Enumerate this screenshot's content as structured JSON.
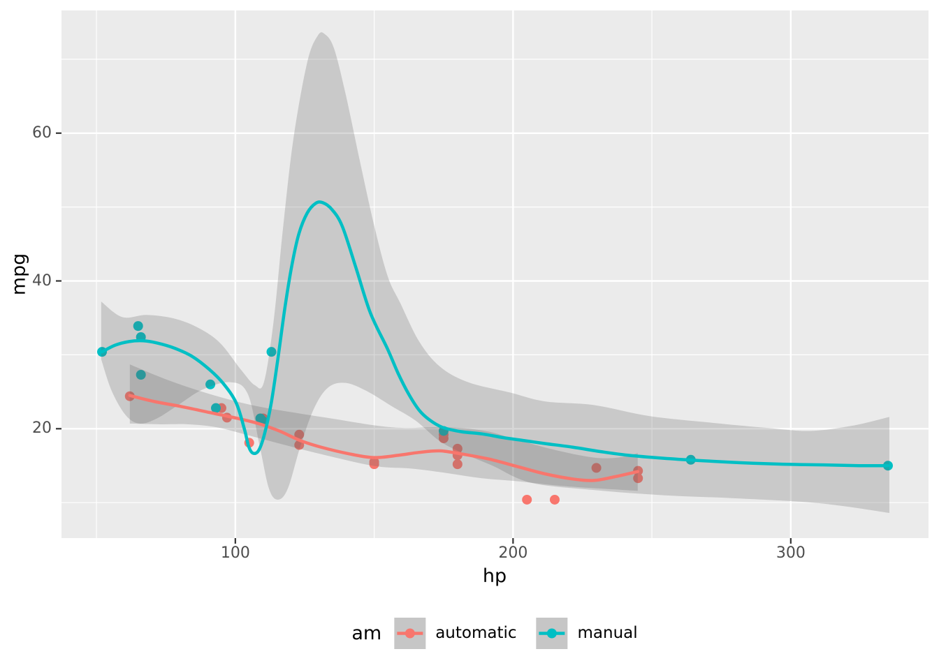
{
  "figure": {
    "background": "#ffffff",
    "panel_background": "#ebebeb",
    "grid_color": "#ffffff",
    "tick_color": "#333333",
    "tick_text_color": "#4d4d4d",
    "ribbon_color": "#646464",
    "ribbon_opacity": 0.25
  },
  "chart_data": {
    "type": "scatter",
    "title": "",
    "xlabel": "hp",
    "ylabel": "mpg",
    "xlim": [
      37.4,
      349.6
    ],
    "ylim": [
      5.2,
      76.6
    ],
    "x_ticks": [
      100,
      200,
      300
    ],
    "y_ticks": [
      20,
      40,
      60
    ],
    "x_minor_ticks": [
      50,
      150,
      250,
      350
    ],
    "y_minor_ticks": [
      10,
      30,
      50,
      70
    ],
    "grid": true,
    "legend": {
      "title": "am",
      "position": "bottom",
      "entries": [
        {
          "label": "automatic",
          "color": "#F8766D"
        },
        {
          "label": "manual",
          "color": "#00BFC4"
        }
      ]
    },
    "series": [
      {
        "name": "automatic",
        "color": "#F8766D",
        "points": [
          [
            110,
            21.4
          ],
          [
            175,
            18.7
          ],
          [
            105,
            18.1
          ],
          [
            245,
            14.3
          ],
          [
            62,
            24.4
          ],
          [
            95,
            22.8
          ],
          [
            123,
            19.2
          ],
          [
            123,
            17.8
          ],
          [
            180,
            16.4
          ],
          [
            180,
            17.3
          ],
          [
            180,
            15.2
          ],
          [
            205,
            10.4
          ],
          [
            215,
            10.4
          ],
          [
            230,
            14.7
          ],
          [
            97,
            21.5
          ],
          [
            150,
            15.5
          ],
          [
            150,
            15.2
          ],
          [
            245,
            13.3
          ],
          [
            175,
            19.2
          ]
        ],
        "smooth_line": [
          [
            62,
            24.5
          ],
          [
            70.6,
            23.7
          ],
          [
            80.6,
            23.0
          ],
          [
            90.7,
            22.2
          ],
          [
            100.8,
            21.4
          ],
          [
            108.3,
            20.7
          ],
          [
            115.8,
            19.7
          ],
          [
            123.4,
            18.4
          ],
          [
            130.9,
            17.5
          ],
          [
            141,
            16.6
          ],
          [
            149.8,
            16.1
          ],
          [
            158.6,
            16.4
          ],
          [
            166.2,
            16.8
          ],
          [
            173.7,
            17.0
          ],
          [
            181.3,
            16.6
          ],
          [
            191.3,
            15.9
          ],
          [
            201.4,
            14.9
          ],
          [
            211.4,
            13.9
          ],
          [
            221.5,
            13.2
          ],
          [
            229.1,
            13.0
          ],
          [
            236.6,
            13.5
          ],
          [
            244.9,
            14.2
          ]
        ],
        "ribbon_upper": [
          [
            62,
            28.7
          ],
          [
            75.6,
            26.6
          ],
          [
            90.7,
            24.7
          ],
          [
            105.8,
            23.2
          ],
          [
            120.9,
            22.2
          ],
          [
            136,
            21.3
          ],
          [
            151.1,
            20.4
          ],
          [
            161.1,
            20.1
          ],
          [
            171.2,
            20.2
          ],
          [
            181.3,
            20.1
          ],
          [
            191.3,
            19.6
          ],
          [
            201.4,
            18.5
          ],
          [
            216.5,
            17.0
          ],
          [
            229.1,
            16.1
          ],
          [
            237.9,
            16.1
          ],
          [
            244.9,
            16.7
          ]
        ],
        "ribbon_lower": [
          [
            62,
            20.7
          ],
          [
            73.1,
            20.6
          ],
          [
            83.1,
            20.6
          ],
          [
            93.2,
            20.2
          ],
          [
            105.8,
            19.0
          ],
          [
            120.9,
            17.5
          ],
          [
            136,
            16.1
          ],
          [
            151.1,
            14.9
          ],
          [
            163.7,
            14.6
          ],
          [
            176.2,
            14.0
          ],
          [
            188.8,
            13.3
          ],
          [
            201.4,
            12.9
          ],
          [
            216.5,
            12.3
          ],
          [
            231.6,
            11.9
          ],
          [
            244.9,
            11.6
          ]
        ]
      },
      {
        "name": "manual",
        "color": "#00BFC4",
        "points": [
          [
            110,
            21
          ],
          [
            110,
            21
          ],
          [
            93,
            22.8
          ],
          [
            66,
            32.4
          ],
          [
            52,
            30.4
          ],
          [
            65,
            33.9
          ],
          [
            66,
            27.3
          ],
          [
            91,
            26
          ],
          [
            113,
            30.4
          ],
          [
            264,
            15.8
          ],
          [
            175,
            19.7
          ],
          [
            335,
            15
          ],
          [
            109,
            21.4
          ]
        ],
        "smooth_line": [
          [
            52,
            30.4
          ],
          [
            56.7,
            31.3
          ],
          [
            61.8,
            31.8
          ],
          [
            66.8,
            31.9
          ],
          [
            71.8,
            31.6
          ],
          [
            78.1,
            30.9
          ],
          [
            84.4,
            29.8
          ],
          [
            90.7,
            28.0
          ],
          [
            95.7,
            26.1
          ],
          [
            100.3,
            23.5
          ],
          [
            103.3,
            19.9
          ],
          [
            104.8,
            17.6
          ],
          [
            106.3,
            16.7
          ],
          [
            108.3,
            17.0
          ],
          [
            110.3,
            19.0
          ],
          [
            112.8,
            23.2
          ],
          [
            115.3,
            29.4
          ],
          [
            117.9,
            36.5
          ],
          [
            120.4,
            42.2
          ],
          [
            122.9,
            46.4
          ],
          [
            125.9,
            49.2
          ],
          [
            128.9,
            50.5
          ],
          [
            131.4,
            50.6
          ],
          [
            134.7,
            49.7
          ],
          [
            138.5,
            47.4
          ],
          [
            143.5,
            41.7
          ],
          [
            148.6,
            35.7
          ],
          [
            154.8,
            30.8
          ],
          [
            158.6,
            27.5
          ],
          [
            162.4,
            24.7
          ],
          [
            166.2,
            22.5
          ],
          [
            169.9,
            21.2
          ],
          [
            174.5,
            20.2
          ],
          [
            181.3,
            19.6
          ],
          [
            188.8,
            19.3
          ],
          [
            196.4,
            18.8
          ],
          [
            203.9,
            18.4
          ],
          [
            211.4,
            18.0
          ],
          [
            221.5,
            17.5
          ],
          [
            231.6,
            16.9
          ],
          [
            241.6,
            16.4
          ],
          [
            254.2,
            16.0
          ],
          [
            266.8,
            15.7
          ],
          [
            281.9,
            15.4
          ],
          [
            297,
            15.2
          ],
          [
            312,
            15.1
          ],
          [
            324.6,
            15.0
          ],
          [
            335,
            15.0
          ]
        ],
        "ribbon_upper": [
          [
            51.7,
            37.2
          ],
          [
            59.3,
            35.1
          ],
          [
            68.1,
            35.4
          ],
          [
            78.1,
            34.9
          ],
          [
            86.9,
            33.6
          ],
          [
            94.5,
            31.6
          ],
          [
            102,
            28.0
          ],
          [
            107,
            25.9
          ],
          [
            110.3,
            26.3
          ],
          [
            113.8,
            34.6
          ],
          [
            117.1,
            46.9
          ],
          [
            120.9,
            59.2
          ],
          [
            125.9,
            69.6
          ],
          [
            129.7,
            73.2
          ],
          [
            132.2,
            73.4
          ],
          [
            135.5,
            71.5
          ],
          [
            139.7,
            65.3
          ],
          [
            144.8,
            56.3
          ],
          [
            149.8,
            47.8
          ],
          [
            154.8,
            40.7
          ],
          [
            159.4,
            37.0
          ],
          [
            166.2,
            31.8
          ],
          [
            173.7,
            28.4
          ],
          [
            183.8,
            26.3
          ],
          [
            198.9,
            24.9
          ],
          [
            211.4,
            23.7
          ],
          [
            229.1,
            23.2
          ],
          [
            249.2,
            21.7
          ],
          [
            271.8,
            20.8
          ],
          [
            292,
            20.1
          ],
          [
            307,
            19.7
          ],
          [
            322.1,
            20.4
          ],
          [
            335.5,
            21.6
          ]
        ],
        "ribbon_lower": [
          [
            51.7,
            29.4
          ],
          [
            55.5,
            25.1
          ],
          [
            60.6,
            21.8
          ],
          [
            65.6,
            20.7
          ],
          [
            71.8,
            21.4
          ],
          [
            79.4,
            23.2
          ],
          [
            88.2,
            25.3
          ],
          [
            98.2,
            26.3
          ],
          [
            104.5,
            24.7
          ],
          [
            108.8,
            17.6
          ],
          [
            112.1,
            11.9
          ],
          [
            115.3,
            10.4
          ],
          [
            118.9,
            11.9
          ],
          [
            123.4,
            17.6
          ],
          [
            128.4,
            22.8
          ],
          [
            133.5,
            25.6
          ],
          [
            139.7,
            26.2
          ],
          [
            147.3,
            25.1
          ],
          [
            156.1,
            23.1
          ],
          [
            164.9,
            21.1
          ],
          [
            173.7,
            18.3
          ],
          [
            182.5,
            16.6
          ],
          [
            192.6,
            15.0
          ],
          [
            206.4,
            12.7
          ],
          [
            229.1,
            11.7
          ],
          [
            254.2,
            11.0
          ],
          [
            279.4,
            10.6
          ],
          [
            304.5,
            10.1
          ],
          [
            319.6,
            9.5
          ],
          [
            335.5,
            8.6
          ]
        ]
      }
    ]
  }
}
